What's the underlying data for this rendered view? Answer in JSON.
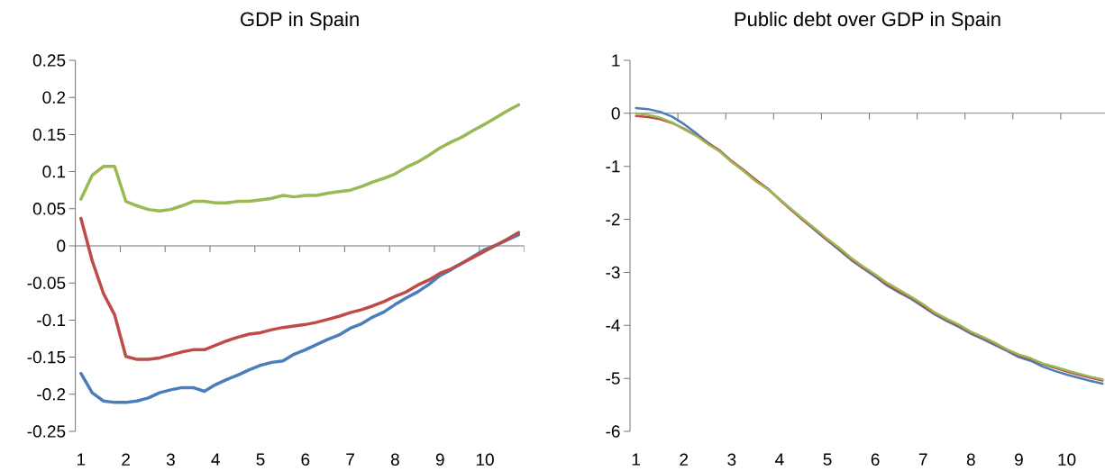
{
  "chart_data": [
    {
      "type": "line",
      "title": "GDP in Spain",
      "categories": [
        "1",
        null,
        null,
        null,
        "2",
        null,
        null,
        null,
        "3",
        null,
        null,
        null,
        "4",
        null,
        null,
        null,
        "5",
        null,
        null,
        null,
        "6",
        null,
        null,
        null,
        "7",
        null,
        null,
        null,
        "8",
        null,
        null,
        null,
        "9",
        null,
        null,
        null,
        "10",
        null,
        null,
        null
      ],
      "ylim": [
        -0.25,
        0.25
      ],
      "yticks": [
        -0.25,
        -0.2,
        -0.15,
        -0.1,
        -0.05,
        0,
        0.05,
        0.1,
        0.15,
        0.2,
        0.25
      ],
      "series": [
        {
          "color": "#4a7ebb",
          "values": [
            -0.172,
            -0.198,
            -0.209,
            -0.211,
            -0.211,
            -0.209,
            -0.205,
            -0.198,
            -0.194,
            -0.191,
            -0.191,
            -0.196,
            -0.187,
            -0.18,
            -0.174,
            -0.167,
            -0.161,
            -0.157,
            -0.155,
            -0.146,
            -0.14,
            -0.133,
            -0.126,
            -0.12,
            -0.111,
            -0.105,
            -0.096,
            -0.089,
            -0.079,
            -0.07,
            -0.062,
            -0.052,
            -0.04,
            -0.032,
            -0.023,
            -0.014,
            -0.005,
            0.001,
            0.008,
            0.015
          ]
        },
        {
          "color": "#be4b48",
          "values": [
            0.037,
            -0.02,
            -0.064,
            -0.093,
            -0.149,
            -0.153,
            -0.153,
            -0.151,
            -0.147,
            -0.143,
            -0.14,
            -0.14,
            -0.134,
            -0.128,
            -0.123,
            -0.119,
            -0.117,
            -0.113,
            -0.11,
            -0.108,
            -0.106,
            -0.103,
            -0.099,
            -0.095,
            -0.09,
            -0.086,
            -0.081,
            -0.075,
            -0.068,
            -0.062,
            -0.053,
            -0.046,
            -0.037,
            -0.031,
            -0.023,
            -0.015,
            -0.007,
            0.001,
            0.009,
            0.018
          ]
        },
        {
          "color": "#98b954",
          "values": [
            0.063,
            0.095,
            0.107,
            0.107,
            0.06,
            0.054,
            0.049,
            0.047,
            0.049,
            0.054,
            0.06,
            0.06,
            0.058,
            0.058,
            0.06,
            0.06,
            0.062,
            0.064,
            0.068,
            0.066,
            0.068,
            0.068,
            0.071,
            0.073,
            0.075,
            0.08,
            0.086,
            0.091,
            0.097,
            0.106,
            0.113,
            0.122,
            0.132,
            0.14,
            0.147,
            0.156,
            0.164,
            0.173,
            0.182,
            0.19
          ]
        }
      ]
    },
    {
      "type": "line",
      "title": "Public debt over GDP in Spain",
      "categories": [
        "1",
        null,
        null,
        null,
        "2",
        null,
        null,
        null,
        "3",
        null,
        null,
        null,
        "4",
        null,
        null,
        null,
        "5",
        null,
        null,
        null,
        "6",
        null,
        null,
        null,
        "7",
        null,
        null,
        null,
        "8",
        null,
        null,
        null,
        "9",
        null,
        null,
        null,
        "10",
        null,
        null,
        null
      ],
      "ylim": [
        -6,
        1
      ],
      "yticks": [
        -6,
        -5,
        -4,
        -3,
        -2,
        -1,
        0,
        1
      ],
      "series": [
        {
          "color": "#4a7ebb",
          "values": [
            0.1,
            0.08,
            0.03,
            -0.06,
            -0.2,
            -0.37,
            -0.55,
            -0.71,
            -0.91,
            -1.08,
            -1.27,
            -1.42,
            -1.62,
            -1.82,
            -2.02,
            -2.21,
            -2.4,
            -2.58,
            -2.77,
            -2.93,
            -3.08,
            -3.25,
            -3.38,
            -3.5,
            -3.65,
            -3.8,
            -3.92,
            -4.03,
            -4.16,
            -4.26,
            -4.37,
            -4.48,
            -4.6,
            -4.67,
            -4.78,
            -4.86,
            -4.93,
            -4.99,
            -5.05,
            -5.1
          ]
        },
        {
          "color": "#be4b48",
          "values": [
            -0.05,
            -0.07,
            -0.11,
            -0.18,
            -0.29,
            -0.41,
            -0.56,
            -0.7,
            -0.9,
            -1.07,
            -1.25,
            -1.42,
            -1.63,
            -1.83,
            -2.02,
            -2.2,
            -2.39,
            -2.56,
            -2.75,
            -2.91,
            -3.06,
            -3.23,
            -3.36,
            -3.48,
            -3.63,
            -3.78,
            -3.9,
            -4.01,
            -4.14,
            -4.24,
            -4.35,
            -4.46,
            -4.57,
            -4.64,
            -4.73,
            -4.8,
            -4.87,
            -4.93,
            -4.99,
            -5.04
          ]
        },
        {
          "color": "#98b954",
          "values": [
            0.0,
            -0.03,
            -0.08,
            -0.17,
            -0.3,
            -0.42,
            -0.58,
            -0.72,
            -0.92,
            -1.09,
            -1.28,
            -1.43,
            -1.62,
            -1.81,
            -2.0,
            -2.18,
            -2.37,
            -2.54,
            -2.73,
            -2.89,
            -3.04,
            -3.2,
            -3.33,
            -3.46,
            -3.6,
            -3.76,
            -3.88,
            -3.99,
            -4.12,
            -4.22,
            -4.33,
            -4.45,
            -4.55,
            -4.62,
            -4.72,
            -4.78,
            -4.85,
            -4.91,
            -4.97,
            -5.02
          ]
        }
      ]
    }
  ]
}
